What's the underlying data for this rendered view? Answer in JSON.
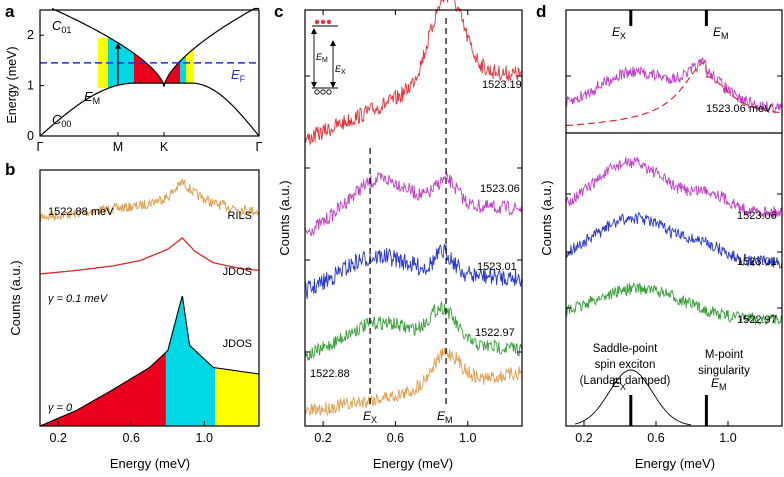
{
  "chart_data": [
    {
      "panel": "a",
      "type": "line",
      "ylabel": "Energy (meV)",
      "xticks": [
        "Γ",
        "M",
        "K",
        "Γ"
      ],
      "yticks": [
        "0",
        "1",
        "2"
      ],
      "ylim": [
        0,
        2.5
      ],
      "series": [
        {
          "name": "C01",
          "label_main": "C",
          "label_sub": "01"
        },
        {
          "name": "C00",
          "label_main": "C",
          "label_sub": "00"
        }
      ],
      "fermi_level": {
        "value": 1.45,
        "label_main": "E",
        "label_sub": "F",
        "color": "#2a2ad8"
      },
      "annotations": [
        {
          "label_main": "E",
          "label_sub": "M"
        }
      ],
      "fill_colors": {
        "red": "#e8001c",
        "cyan": "#00d8e6",
        "yellow": "#ffff00"
      }
    },
    {
      "panel": "b",
      "type": "line",
      "xlabel": "Energy (meV)",
      "ylabel": "Counts (a.u.)",
      "xticks": [
        "0.2",
        "0.6",
        "1.0"
      ],
      "xlim": [
        0.1,
        1.3
      ],
      "series": [
        {
          "name": "RILS",
          "energy_label": "1522.88 meV",
          "color": "#e0a050",
          "x": [
            0.1,
            0.3,
            0.5,
            0.65,
            0.8,
            0.88,
            0.95,
            1.05,
            1.2,
            1.3
          ],
          "y": [
            0.35,
            0.42,
            0.5,
            0.56,
            0.72,
            1.0,
            0.78,
            0.6,
            0.5,
            0.45
          ]
        },
        {
          "name": "JDOS",
          "gamma_label": "γ = 0.1 meV",
          "color": "#e0262a",
          "x": [
            0.1,
            0.3,
            0.5,
            0.65,
            0.8,
            0.88,
            0.95,
            1.05,
            1.2,
            1.3
          ],
          "y": [
            0.2,
            0.28,
            0.38,
            0.5,
            0.75,
            1.0,
            0.7,
            0.45,
            0.32,
            0.28
          ]
        },
        {
          "name": "JDOS",
          "gamma_label": "γ = 0",
          "color": "#000000",
          "x": [
            0.1,
            0.3,
            0.5,
            0.7,
            0.8,
            0.86,
            0.88,
            0.92,
            1.05,
            1.2,
            1.3
          ],
          "y": [
            0.0,
            0.12,
            0.28,
            0.45,
            0.58,
            0.9,
            1.0,
            0.62,
            0.45,
            0.42,
            0.4
          ],
          "fill_regions": [
            {
              "from": 0.1,
              "to": 0.79,
              "color": "#e8001c"
            },
            {
              "from": 0.79,
              "to": 1.06,
              "color": "#00d8e6"
            },
            {
              "from": 1.06,
              "to": 1.3,
              "color": "#ffff00"
            }
          ]
        }
      ]
    },
    {
      "panel": "c",
      "type": "line",
      "xlabel": "Energy (meV)",
      "ylabel": "Counts (a.u.)",
      "xticks": [
        "0.2",
        "0.6",
        "1.0"
      ],
      "xlim": [
        0.1,
        1.3
      ],
      "markers": [
        {
          "x": 0.46,
          "label_main": "E",
          "label_sub": "X"
        },
        {
          "x": 0.88,
          "label_main": "E",
          "label_sub": "M"
        }
      ],
      "inset_labels": [
        {
          "label_main": "E",
          "label_sub": "M"
        },
        {
          "label_main": "E",
          "label_sub": "X"
        }
      ],
      "series": [
        {
          "name": "1523.19",
          "color": "#e8333a"
        },
        {
          "name": "1523.06",
          "color": "#c040c8"
        },
        {
          "name": "1523.01",
          "color": "#2a3ad0"
        },
        {
          "name": "1522.97",
          "color": "#3aa03a"
        },
        {
          "name": "1522.88",
          "color": "#e0a050"
        }
      ]
    },
    {
      "panel": "d",
      "type": "line",
      "xlabel": "Energy (meV)",
      "ylabel": "Counts (a.u.)",
      "xticks": [
        "0.2",
        "0.6",
        "1.0"
      ],
      "xlim": [
        0.1,
        1.3
      ],
      "markers": [
        {
          "x": 0.46,
          "label_main": "E",
          "label_sub": "X"
        },
        {
          "x": 0.88,
          "label_main": "E",
          "label_sub": "M"
        }
      ],
      "series": [
        {
          "name": "1523.06 meV",
          "color": "#c040c8",
          "fit": "dashed red"
        },
        {
          "name": "1523.06",
          "color": "#c040c8"
        },
        {
          "name": "1523.01",
          "color": "#2a3ad0"
        },
        {
          "name": "1522.97",
          "color": "#3aa03a"
        }
      ],
      "theory": {
        "exciton_label": [
          "Saddle-point",
          "spin exciton",
          "(Landau damped)"
        ],
        "singularity_label": [
          "M-point",
          "singularity"
        ],
        "gaussian_center": 0.46,
        "gaussian_width": 0.12
      }
    }
  ]
}
